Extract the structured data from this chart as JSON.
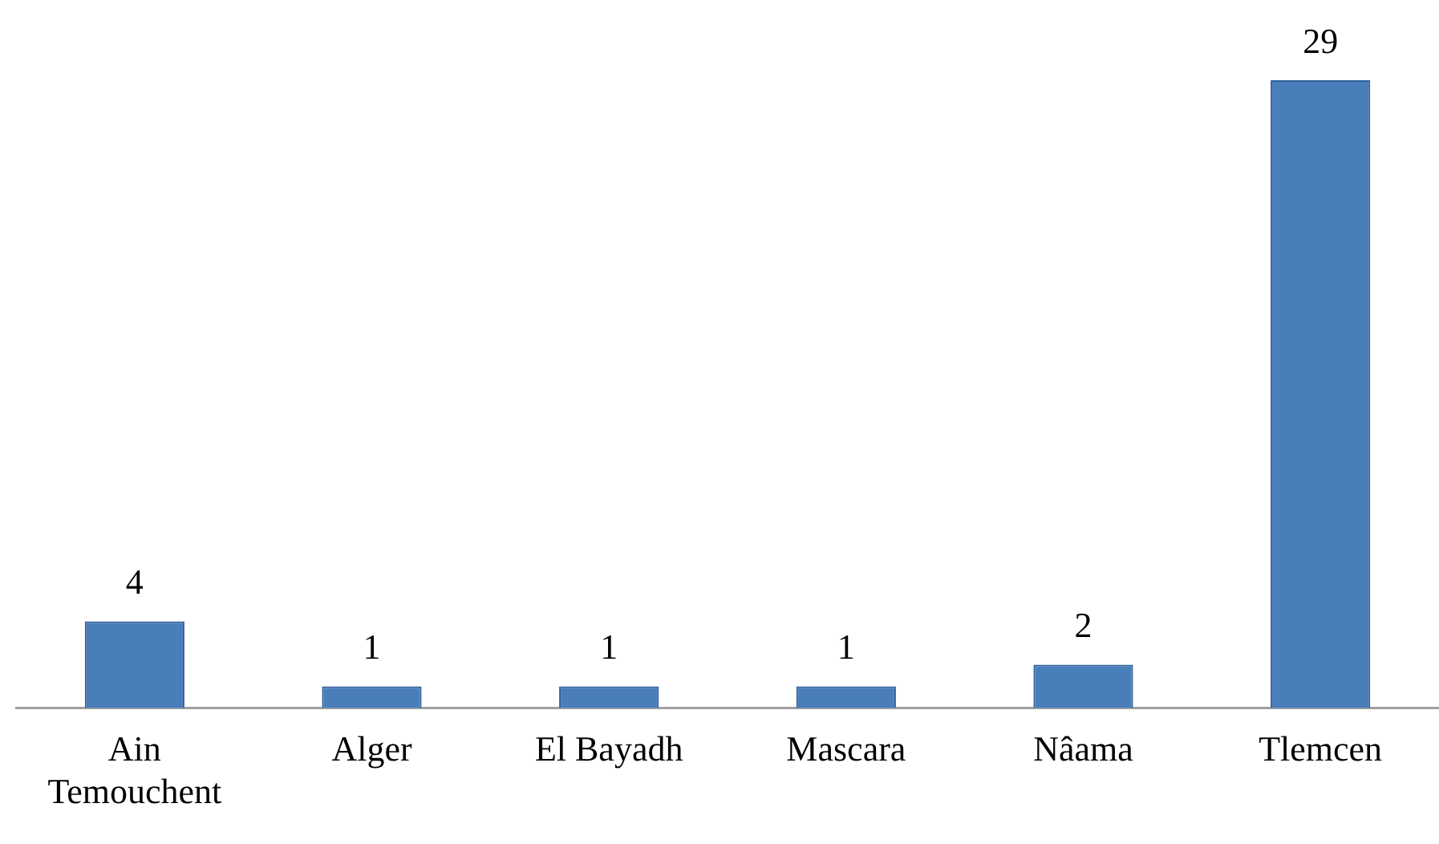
{
  "chart_data": {
    "type": "bar",
    "categories": [
      "Ain Temouchent",
      "Alger",
      "El Bayadh",
      "Mascara",
      "Nâama",
      "Tlemcen"
    ],
    "values": [
      4,
      1,
      1,
      1,
      2,
      29
    ],
    "color": "#4a7ebb",
    "data_labels": true,
    "grid": false,
    "legend": false
  }
}
